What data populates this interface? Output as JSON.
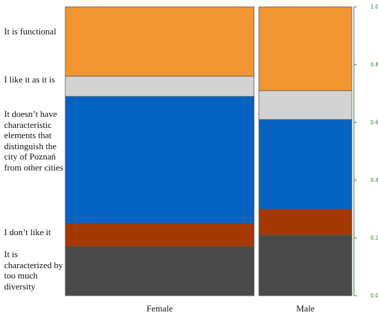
{
  "chart_data": {
    "type": "mosaic",
    "title": "",
    "xlabel": "",
    "ylabel": "",
    "categories": [
      "Female",
      "Male"
    ],
    "category_widths": [
      0.67,
      0.33
    ],
    "ylim": [
      0,
      1
    ],
    "yticks": [
      "0.0",
      "0.2",
      "0.4",
      "0.6",
      "0.8",
      "1.0"
    ],
    "legend_position": "left",
    "series": [
      {
        "name": "It is characterized by too much diversity",
        "values": [
          0.17,
          0.21
        ],
        "color": "#4a4a4a"
      },
      {
        "name": "I don’t like it",
        "values": [
          0.08,
          0.09
        ],
        "color": "#a33800"
      },
      {
        "name": "It doesn’t have characteristic elements that distinguish the city of Poznań from other cities",
        "values": [
          0.44,
          0.31
        ],
        "color": "#0563c1"
      },
      {
        "name": "I like it as it is",
        "values": [
          0.07,
          0.1
        ],
        "color": "#d3d3d3"
      },
      {
        "name": "It is functional",
        "values": [
          0.24,
          0.29
        ],
        "color": "#f0952f"
      }
    ]
  }
}
